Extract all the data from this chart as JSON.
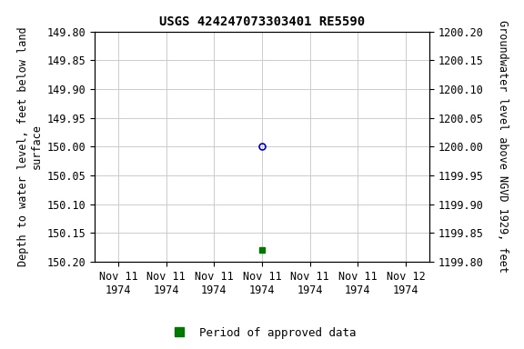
{
  "title": "USGS 424247073303401 RE5590",
  "ylabel_left": "Depth to water level, feet below land\nsurface",
  "ylabel_right": "Groundwater level above NGVD 1929, feet",
  "ylim_left_top": 149.8,
  "ylim_left_bottom": 150.2,
  "ylim_right_top": 1200.2,
  "ylim_right_bottom": 1199.8,
  "yticks_left": [
    149.8,
    149.85,
    149.9,
    149.95,
    150.0,
    150.05,
    150.1,
    150.15,
    150.2
  ],
  "yticks_right": [
    1200.2,
    1200.15,
    1200.1,
    1200.05,
    1200.0,
    1199.95,
    1199.9,
    1199.85,
    1199.8
  ],
  "blue_point_x": 3,
  "blue_point_y": 150.0,
  "green_point_x": 3,
  "green_point_y": 150.18,
  "blue_color": "#0000bb",
  "green_color": "#007700",
  "background_color": "#ffffff",
  "grid_color": "#cccccc",
  "legend_label": "Period of approved data",
  "title_fontsize": 10,
  "label_fontsize": 8.5,
  "tick_fontsize": 8.5,
  "legend_fontsize": 9,
  "xlim": [
    -0.5,
    6.5
  ],
  "xtick_positions": [
    0,
    1,
    2,
    3,
    4,
    5,
    6
  ],
  "xtick_labels": [
    "Nov 11\n1974",
    "Nov 11\n1974",
    "Nov 11\n1974",
    "Nov 11\n1974",
    "Nov 11\n1974",
    "Nov 11\n1974",
    "Nov 12\n1974"
  ]
}
